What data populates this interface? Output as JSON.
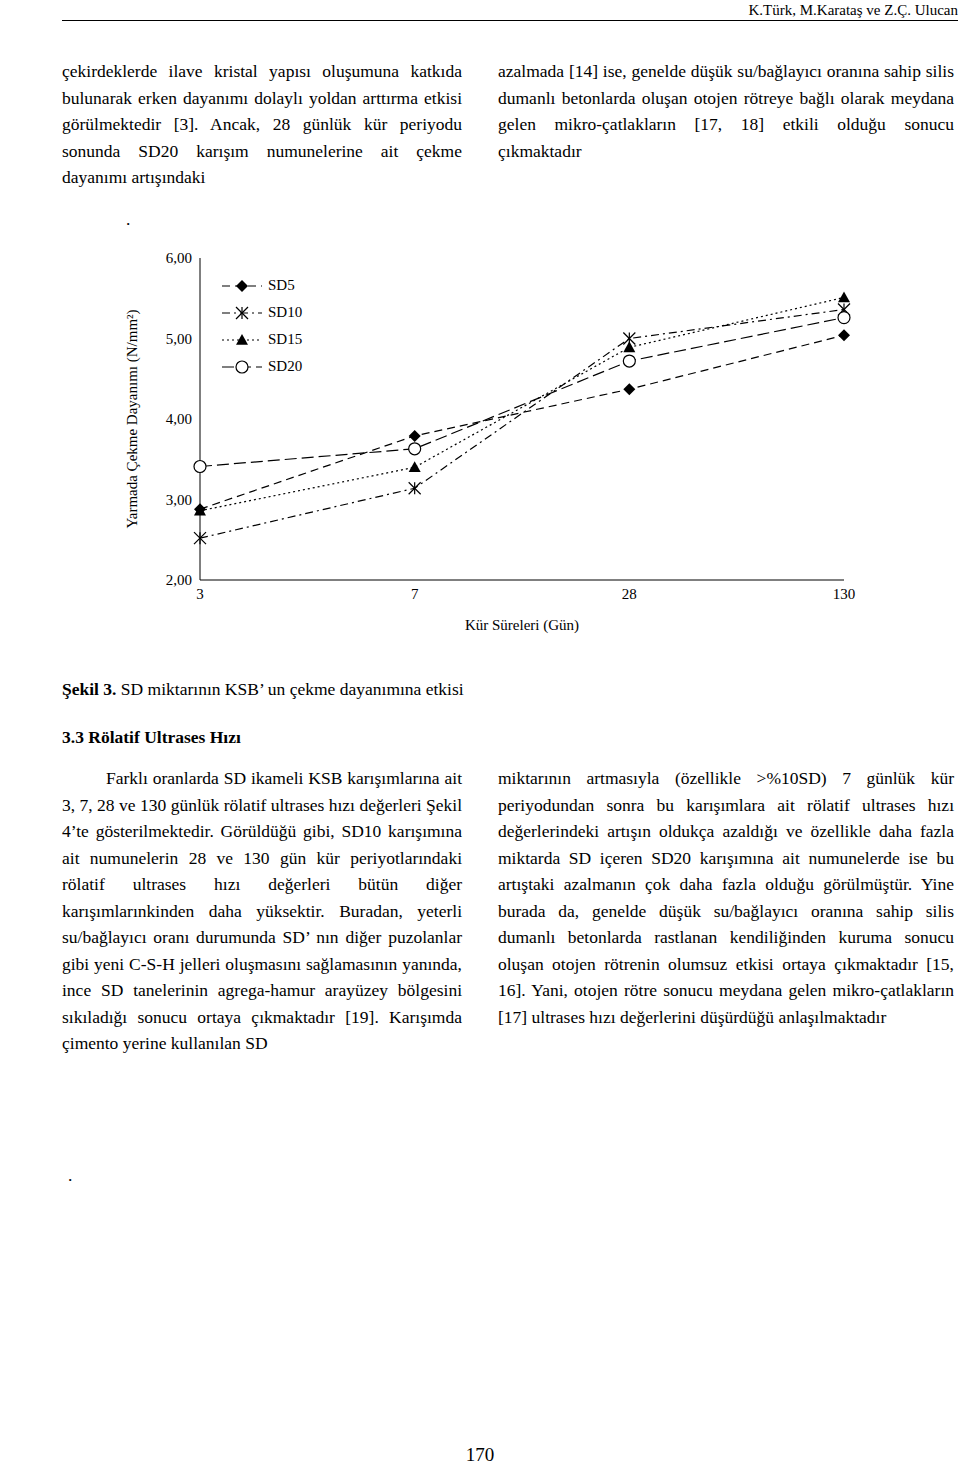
{
  "header": "K.Türk, M.Karataş ve Z.Ç. Ulucan",
  "top": {
    "left": "çekirdeklerde ilave kristal yapısı oluşumuna katkıda bulunarak erken dayanımı dolaylı yoldan arttırma etkisi görülmektedir [3]. Ancak, 28 günlük kür periyodu sonunda SD20 karışım numunelerine ait çekme dayanımı artışındaki",
    "right": "azalmada [14] ise, genelde düşük su/bağlayıcı oranına sahip silis dumanlı betonlarda oluşan otojen rötreye bağlı olarak meydana gelen mikro-çatlakların [17, 18] etkili olduğu sonucu çıkmaktadır",
    "dot": "."
  },
  "chart_data": {
    "type": "line",
    "x_label": "Kür Süreleri (Gün)",
    "y_label": "Yarmada Çekme Dayanımı (N/mm²)",
    "categories": [
      "3",
      "7",
      "28",
      "130"
    ],
    "ylim": [
      2,
      6
    ],
    "yticks": [
      {
        "value": 2,
        "label": "2,00"
      },
      {
        "value": 3,
        "label": "3,00"
      },
      {
        "value": 4,
        "label": "4,00"
      },
      {
        "value": 5,
        "label": "5,00"
      },
      {
        "value": 6,
        "label": "6,00"
      }
    ],
    "grid": false,
    "legend": "upper left",
    "series": [
      {
        "name": "SD5",
        "color": "#000000",
        "marker": "diamond",
        "line_style": "dashed",
        "values": [
          2.88,
          3.79,
          4.37,
          5.04
        ]
      },
      {
        "name": "SD10",
        "color": "#000000",
        "marker": "star",
        "line_style": "dashdot",
        "values": [
          2.52,
          3.14,
          5.0,
          5.36
        ]
      },
      {
        "name": "SD15",
        "color": "#000000",
        "marker": "triangle",
        "line_style": "dotted",
        "values": [
          2.86,
          3.4,
          4.89,
          5.51
        ]
      },
      {
        "name": "SD20",
        "color": "#000000",
        "marker": "circle",
        "line_style": "longdash",
        "values": [
          3.41,
          3.63,
          4.72,
          5.26
        ]
      }
    ]
  },
  "caption": {
    "label": "Şekil 3.",
    "text": " SD miktarının KSB’ un çekme dayanımına etkisi"
  },
  "section": {
    "heading": "3.3 Rölatif Ultrases Hızı",
    "left": "Farklı oranlarda SD ikameli KSB karışımlarına ait 3, 7, 28 ve 130 günlük rölatif ultrases hızı değerleri Şekil 4’te gösterilmektedir. Görüldüğü gibi, SD10 karışımına ait numunelerin 28 ve 130 gün kür periyotlarındaki rölatif ultrases hızı değerleri bütün diğer karışımlarınkinden daha yüksektir. Buradan, yeterli su/bağlayıcı oranı durumunda SD’ nın diğer puzolanlar gibi yeni C-S-H jelleri oluşmasını sağlamasının yanında, ince SD tanelerinin agrega-hamur arayüzey bölgesini sıkıladığı sonucu ortaya çıkmaktadır [19]. Karışımda çimento yerine kullanılan SD",
    "right": "miktarının artmasıyla (özellikle >%10SD) 7 günlük kür periyodundan sonra bu karışımlara ait rölatif ultrases hızı değerlerindeki artışın oldukça azaldığı ve özellikle daha fazla miktarda SD içeren SD20 karışımına ait numunelerde ise bu artıştaki azalmanın çok daha fazla olduğu görülmüştür. Yine burada da, genelde düşük su/bağlayıcı oranına sahip silis dumanlı betonlarda rastlanan kendiliğinden kuruma sonucu oluşan otojen rötrenin olumsuz etkisi ortaya çıkmaktadır [15, 16]. Yani, otojen rötre sonucu meydana gelen mikro-çatlakların [17] ultrases hızı değerlerini düşürdüğü anlaşılmaktadır",
    "dot": "."
  },
  "page_number": "170"
}
